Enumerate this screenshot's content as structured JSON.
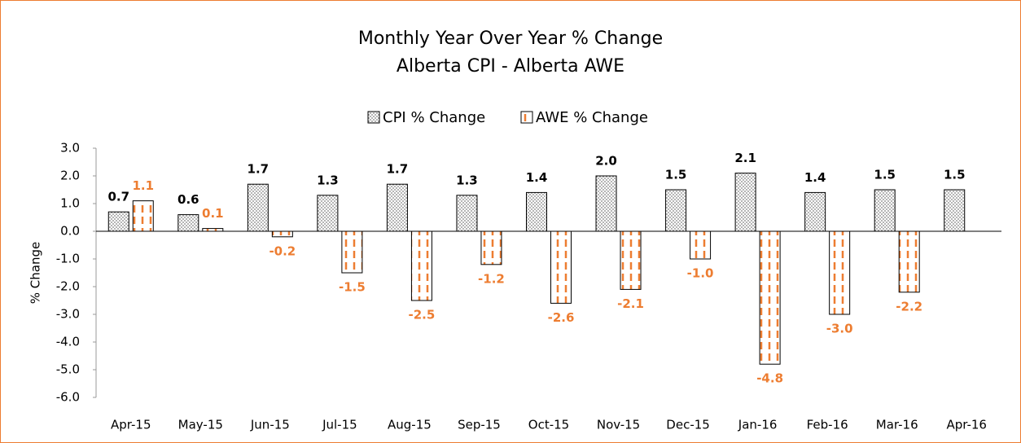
{
  "chart_data": {
    "type": "bar",
    "title": "Monthly Year Over Year % Change",
    "subtitle": "Alberta CPI - Alberta AWE",
    "y_label": "% Change",
    "categories": [
      "Apr-15",
      "May-15",
      "Jun-15",
      "Jul-15",
      "Aug-15",
      "Sep-15",
      "Oct-15",
      "Nov-15",
      "Dec-15",
      "Jan-16",
      "Feb-16",
      "Mar-16",
      "Apr-16"
    ],
    "series": [
      {
        "name": "CPI % Change",
        "color": "#808080",
        "values": [
          0.7,
          0.6,
          1.7,
          1.3,
          1.7,
          1.3,
          1.4,
          2.0,
          1.5,
          2.1,
          1.4,
          1.5,
          1.5
        ],
        "value_labels": [
          "0.7",
          "0.6",
          "1.7",
          "1.3",
          "1.7",
          "1.3",
          "1.4",
          "2.0",
          "1.5",
          "2.1",
          "1.4",
          "1.5",
          "1.5"
        ]
      },
      {
        "name": "AWE % Change",
        "color": "#ED7D31",
        "values": [
          1.1,
          0.1,
          -0.2,
          -1.5,
          -2.5,
          -1.2,
          -2.6,
          -2.1,
          -1.0,
          -4.8,
          -3.0,
          -2.2,
          null
        ],
        "value_labels": [
          "1.1",
          "0.1",
          "-0.2",
          "-1.5",
          "-2.5",
          "-1.2",
          "-2.6",
          "-2.1",
          "-1.0",
          "-4.8",
          "-3.0",
          "-2.2",
          null
        ]
      }
    ],
    "ylim": [
      -6,
      3
    ],
    "yticks": [
      {
        "value": 3,
        "label": "3.0"
      },
      {
        "value": 2,
        "label": "2.0"
      },
      {
        "value": 1,
        "label": "1.0"
      },
      {
        "value": 0,
        "label": "0.0"
      },
      {
        "value": -1,
        "label": "-1.0"
      },
      {
        "value": -2,
        "label": "-2.0"
      },
      {
        "value": -3,
        "label": "-3.0"
      },
      {
        "value": -4,
        "label": "-4.0"
      },
      {
        "value": -5,
        "label": "-5.0"
      },
      {
        "value": -6,
        "label": "-6.0"
      }
    ],
    "grid": false,
    "legend": "top"
  }
}
